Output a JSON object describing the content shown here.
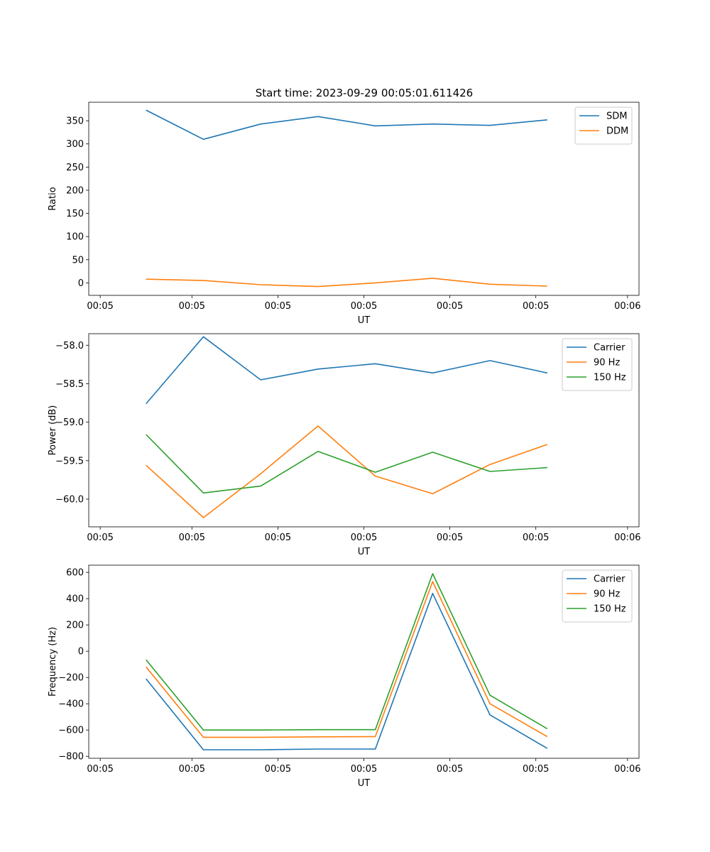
{
  "figure_title": "Start time: 2023-09-29 00:05:01.611426",
  "colors": {
    "blue": "#1f77b4",
    "orange": "#ff7f0e",
    "green": "#2ca02c"
  },
  "chart_data": [
    {
      "type": "line",
      "title": "Start time: 2023-09-29 00:05:01.611426",
      "xlabel": "UT",
      "ylabel": "Ratio",
      "x": [
        1,
        2,
        3,
        4,
        5,
        6,
        7,
        8
      ],
      "xlim": [
        0,
        9.6
      ],
      "xticks": [
        0.2,
        1.8,
        3.3,
        4.8,
        6.3,
        7.8,
        9.4
      ],
      "xtick_labels": [
        "00:05",
        "00:05",
        "00:05",
        "00:05",
        "00:05",
        "00:05",
        "00:06"
      ],
      "ylim": [
        -27,
        390
      ],
      "yticks": [
        0,
        50,
        100,
        150,
        200,
        250,
        300,
        350
      ],
      "ytick_labels": [
        "0",
        "50",
        "100",
        "150",
        "200",
        "250",
        "300",
        "350"
      ],
      "legend_position": "top-right",
      "series": [
        {
          "name": "SDM",
          "color": "#1f77b4",
          "values": [
            373,
            310,
            343,
            359,
            339,
            343,
            340,
            352
          ]
        },
        {
          "name": "DDM",
          "color": "#ff7f0e",
          "values": [
            8,
            5,
            -4,
            -8,
            0,
            10,
            -3,
            -7
          ]
        }
      ]
    },
    {
      "type": "line",
      "title": "",
      "xlabel": "UT",
      "ylabel": "Power (dB)",
      "x": [
        1,
        2,
        3,
        4,
        5,
        6,
        7,
        8
      ],
      "xlim": [
        0,
        9.6
      ],
      "xticks": [
        0.2,
        1.8,
        3.3,
        4.8,
        6.3,
        7.8,
        9.4
      ],
      "xtick_labels": [
        "00:05",
        "00:05",
        "00:05",
        "00:05",
        "00:05",
        "00:05",
        "00:06"
      ],
      "ylim": [
        -60.36,
        -57.85
      ],
      "yticks": [
        -60.0,
        -59.5,
        -59.0,
        -58.5,
        -58.0
      ],
      "ytick_labels": [
        "−60.0",
        "−59.5",
        "−59.0",
        "−58.5",
        "−58.0"
      ],
      "legend_position": "top-right",
      "series": [
        {
          "name": "Carrier",
          "color": "#1f77b4",
          "values": [
            -58.76,
            -57.89,
            -58.45,
            -58.31,
            -58.24,
            -58.36,
            -58.2,
            -58.36
          ]
        },
        {
          "name": "90 Hz",
          "color": "#ff7f0e",
          "values": [
            -59.56,
            -60.24,
            -59.67,
            -59.05,
            -59.7,
            -59.93,
            -59.55,
            -59.29
          ]
        },
        {
          "name": "150 Hz",
          "color": "#2ca02c",
          "values": [
            -59.16,
            -59.92,
            -59.83,
            -59.38,
            -59.65,
            -59.39,
            -59.64,
            -59.59
          ]
        }
      ]
    },
    {
      "type": "line",
      "title": "",
      "xlabel": "UT",
      "ylabel": "Frequency (Hz)",
      "x": [
        1,
        2,
        3,
        4,
        5,
        6,
        7,
        8
      ],
      "xlim": [
        0,
        9.6
      ],
      "xticks": [
        0.2,
        1.8,
        3.3,
        4.8,
        6.3,
        7.8,
        9.4
      ],
      "xtick_labels": [
        "00:05",
        "00:05",
        "00:05",
        "00:05",
        "00:05",
        "00:05",
        "00:06"
      ],
      "ylim": [
        -815,
        655
      ],
      "yticks": [
        -800,
        -600,
        -400,
        -200,
        0,
        200,
        400,
        600
      ],
      "ytick_labels": [
        "−800",
        "−600",
        "−400",
        "−200",
        "0",
        "200",
        "400",
        "600"
      ],
      "legend_position": "top-right",
      "series": [
        {
          "name": "Carrier",
          "color": "#1f77b4",
          "values": [
            -210,
            -750,
            -750,
            -745,
            -745,
            440,
            -485,
            -740
          ]
        },
        {
          "name": "90 Hz",
          "color": "#ff7f0e",
          "values": [
            -120,
            -655,
            -655,
            -652,
            -650,
            530,
            -400,
            -650
          ]
        },
        {
          "name": "150 Hz",
          "color": "#2ca02c",
          "values": [
            -65,
            -600,
            -600,
            -597,
            -597,
            590,
            -335,
            -590
          ]
        }
      ]
    }
  ]
}
